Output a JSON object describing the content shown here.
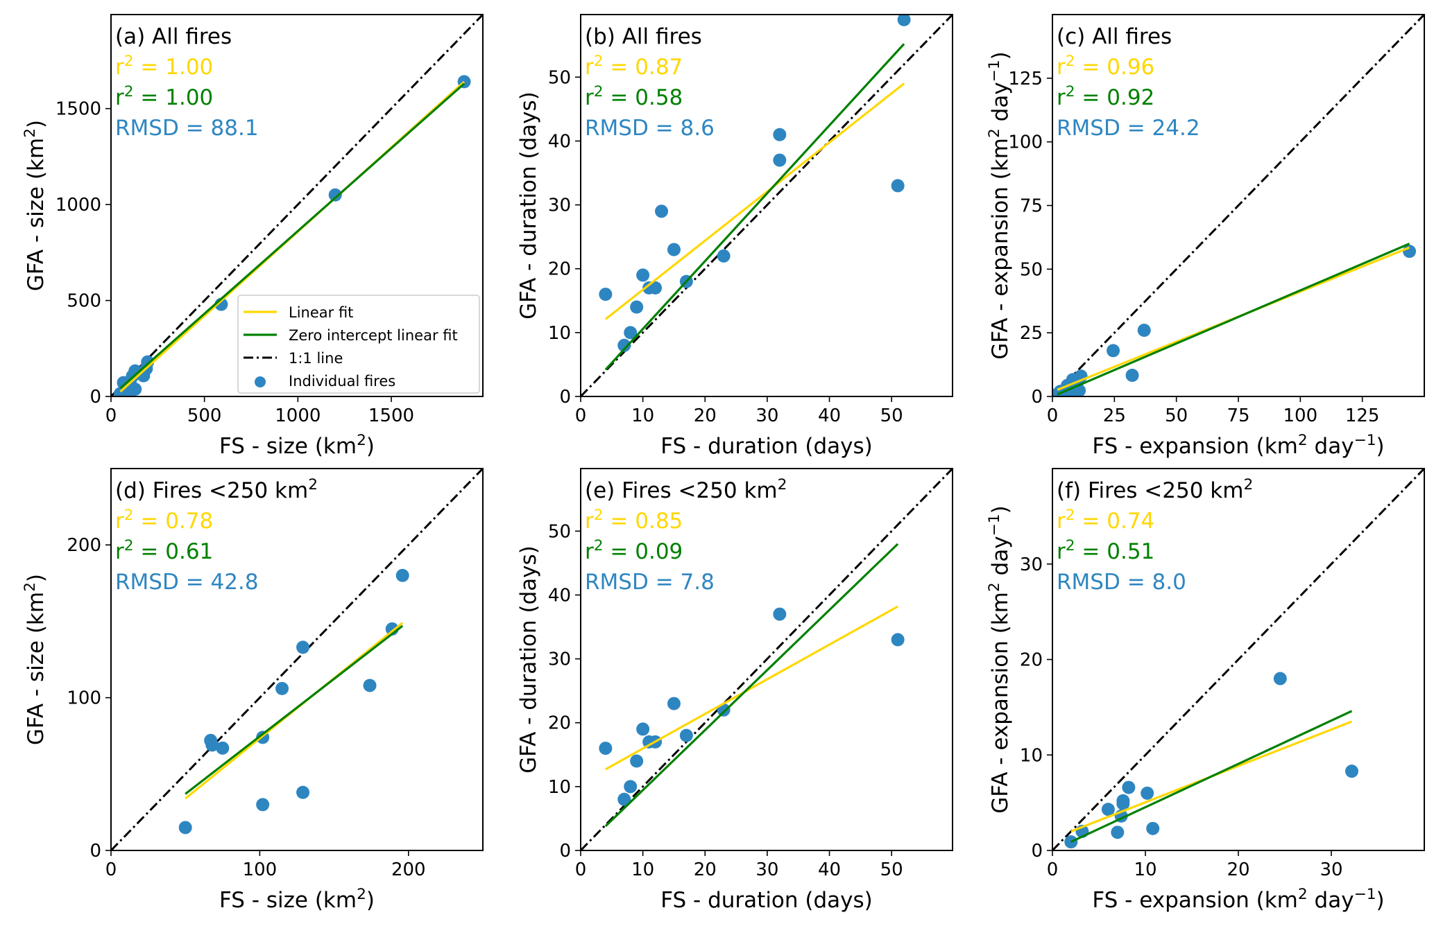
{
  "colors": {
    "linear_fit": "#FFD700",
    "zero_intercept_fit": "#008000",
    "one_to_one": "#000000",
    "points": "#2E86C1",
    "rmsd_text": "#2E86C1"
  },
  "legend": {
    "items": [
      {
        "label": "Linear fit",
        "kind": "line",
        "color": "#FFD700"
      },
      {
        "label": "Zero intercept linear fit",
        "kind": "line",
        "color": "#008000"
      },
      {
        "label": "1:1 line",
        "kind": "dashdot",
        "color": "#000000"
      },
      {
        "label": "Individual fires",
        "kind": "marker",
        "color": "#2E86C1"
      }
    ],
    "placement": "lower-right of panel (a)"
  },
  "chart_data": [
    {
      "type": "scatter",
      "panel": "a",
      "title": "(a) All fires",
      "title_sup": "",
      "xlabel": "FS - size (km",
      "xlabel_sup": "2",
      "xlabel_end": ")",
      "ylabel": "GFA - size (km",
      "ylabel_sup": "2",
      "ylabel_end": ")",
      "xlim": [
        0,
        1990
      ],
      "ylim": [
        0,
        1990
      ],
      "xticks": [
        0,
        500,
        1000,
        1500
      ],
      "yticks": [
        0,
        500,
        1000,
        1500
      ],
      "stats": {
        "r2_linear": "r2 = 1.00",
        "r2_zero": "r2 = 1.00",
        "rmsd": "RMSD = 88.1"
      },
      "stats_values": {
        "r2_linear": 1.0,
        "r2_zero": 1.0,
        "rmsd": 88.1
      },
      "points": [
        [
          50,
          15
        ],
        [
          67,
          72
        ],
        [
          68,
          69
        ],
        [
          75,
          67
        ],
        [
          102,
          30
        ],
        [
          102,
          74
        ],
        [
          115,
          106
        ],
        [
          129,
          133
        ],
        [
          129,
          38
        ],
        [
          174,
          108
        ],
        [
          189,
          145
        ],
        [
          196,
          180
        ],
        [
          590,
          480
        ],
        [
          1200,
          1050
        ],
        [
          1890,
          1640
        ]
      ],
      "linear_fit": [
        [
          50,
          25
        ],
        [
          1890,
          1640
        ]
      ],
      "zero_fit": [
        [
          50,
          43
        ],
        [
          1890,
          1630
        ]
      ],
      "legend": true
    },
    {
      "type": "scatter",
      "panel": "b",
      "title": "(b) All fires",
      "title_sup": "",
      "xlabel": "FS - duration (days)",
      "xlabel_sup": "",
      "xlabel_end": "",
      "ylabel": "GFA - duration (days)",
      "ylabel_sup": "",
      "ylabel_end": "",
      "xlim": [
        0,
        59.8
      ],
      "ylim": [
        0,
        59.8
      ],
      "xticks": [
        0,
        10,
        20,
        30,
        40,
        50
      ],
      "yticks": [
        0,
        10,
        20,
        30,
        40,
        50
      ],
      "stats": {
        "r2_linear": "r2 = 0.87",
        "r2_zero": "r2 = 0.58",
        "rmsd": "RMSD = 8.6"
      },
      "stats_values": {
        "r2_linear": 0.87,
        "r2_zero": 0.58,
        "rmsd": 8.6
      },
      "points": [
        [
          4,
          16
        ],
        [
          7,
          8
        ],
        [
          8,
          10
        ],
        [
          9,
          14
        ],
        [
          10,
          19
        ],
        [
          11,
          17
        ],
        [
          12,
          17
        ],
        [
          13,
          29
        ],
        [
          15,
          23
        ],
        [
          17,
          18
        ],
        [
          23,
          22
        ],
        [
          32,
          41
        ],
        [
          32,
          37
        ],
        [
          51,
          33
        ],
        [
          52,
          59
        ]
      ],
      "linear_fit": [
        [
          4,
          12.1
        ],
        [
          52,
          49
        ]
      ],
      "zero_fit": [
        [
          4,
          4.2
        ],
        [
          52,
          55.2
        ]
      ],
      "legend": false
    },
    {
      "type": "scatter",
      "panel": "c",
      "title": "(c) All fires",
      "title_sup": "",
      "xlabel": "FS - expansion (km",
      "xlabel_sup": "2",
      "xlabel_end": " day",
      "xlabel_sup2": "−1",
      "xlabel_end2": ")",
      "ylabel": "GFA - expansion (km",
      "ylabel_sup": "2",
      "ylabel_end": " day",
      "ylabel_sup2": "−1",
      "ylabel_end2": ")",
      "xlim": [
        0,
        150
      ],
      "ylim": [
        0,
        150
      ],
      "xticks": [
        0,
        25,
        50,
        75,
        100,
        125
      ],
      "yticks": [
        0,
        25,
        50,
        75,
        100,
        125
      ],
      "stats": {
        "r2_linear": "r2 = 0.96",
        "r2_zero": "r2 = 0.92",
        "rmsd": "RMSD = 24.2"
      },
      "stats_values": {
        "r2_linear": 0.96,
        "r2_zero": 0.92,
        "rmsd": 24.2
      },
      "points": [
        [
          2,
          0.9
        ],
        [
          3.2,
          2.0
        ],
        [
          6,
          4.3
        ],
        [
          7,
          1.9
        ],
        [
          7.4,
          3.6
        ],
        [
          7.6,
          4.9
        ],
        [
          8.2,
          6.6
        ],
        [
          10.2,
          6.0
        ],
        [
          10.8,
          2.3
        ],
        [
          11.5,
          8
        ],
        [
          24.5,
          18
        ],
        [
          32.2,
          8.3
        ],
        [
          37,
          26
        ],
        [
          144,
          57
        ]
      ],
      "linear_fit": [
        [
          2,
          2.6
        ],
        [
          144,
          58.5
        ]
      ],
      "zero_fit": [
        [
          2,
          0.8
        ],
        [
          144,
          60
        ]
      ],
      "legend": false
    },
    {
      "type": "scatter",
      "panel": "d",
      "title": "(d) Fires <250 km",
      "title_sup": "2",
      "xlabel": "FS - size (km",
      "xlabel_sup": "2",
      "xlabel_end": ")",
      "ylabel": "GFA - size (km",
      "ylabel_sup": "2",
      "ylabel_end": ")",
      "xlim": [
        0,
        250
      ],
      "ylim": [
        0,
        250
      ],
      "xticks": [
        0,
        100,
        200
      ],
      "yticks": [
        0,
        100,
        200
      ],
      "stats": {
        "r2_linear": "r2 = 0.78",
        "r2_zero": "r2 = 0.61",
        "rmsd": "RMSD = 42.8"
      },
      "stats_values": {
        "r2_linear": 0.78,
        "r2_zero": 0.61,
        "rmsd": 42.8
      },
      "points": [
        [
          50,
          15
        ],
        [
          67,
          72
        ],
        [
          68,
          69
        ],
        [
          75,
          67
        ],
        [
          102,
          30
        ],
        [
          102,
          74
        ],
        [
          115,
          106
        ],
        [
          129,
          133
        ],
        [
          129,
          38
        ],
        [
          174,
          108
        ],
        [
          189,
          145
        ],
        [
          196,
          180
        ]
      ],
      "linear_fit": [
        [
          50,
          34
        ],
        [
          196,
          149
        ]
      ],
      "zero_fit": [
        [
          50,
          37
        ],
        [
          196,
          147
        ]
      ],
      "legend": false
    },
    {
      "type": "scatter",
      "panel": "e",
      "title": "(e) Fires <250 km",
      "title_sup": "2",
      "xlabel": "FS - duration (days)",
      "xlabel_sup": "",
      "xlabel_end": "",
      "ylabel": "GFA - duration (days)",
      "ylabel_sup": "",
      "ylabel_end": "",
      "xlim": [
        0,
        59.8
      ],
      "ylim": [
        0,
        59.8
      ],
      "xticks": [
        0,
        10,
        20,
        30,
        40,
        50
      ],
      "yticks": [
        0,
        10,
        20,
        30,
        40,
        50
      ],
      "stats": {
        "r2_linear": "r2 = 0.85",
        "r2_zero": "r2 = 0.09",
        "rmsd": "RMSD = 7.8"
      },
      "stats_values": {
        "r2_linear": 0.85,
        "r2_zero": 0.09,
        "rmsd": 7.8
      },
      "points": [
        [
          4,
          16
        ],
        [
          7,
          8
        ],
        [
          8,
          10
        ],
        [
          9,
          14
        ],
        [
          10,
          19
        ],
        [
          11,
          17
        ],
        [
          12,
          17
        ],
        [
          15,
          23
        ],
        [
          17,
          18
        ],
        [
          23,
          22
        ],
        [
          32,
          37
        ],
        [
          51,
          33
        ]
      ],
      "linear_fit": [
        [
          4,
          12.7
        ],
        [
          51,
          38.2
        ]
      ],
      "zero_fit": [
        [
          4,
          3.8
        ],
        [
          51,
          48
        ]
      ],
      "legend": false
    },
    {
      "type": "scatter",
      "panel": "f",
      "title": "(f) Fires <250 km",
      "title_sup": "2",
      "xlabel": "FS - expansion (km",
      "xlabel_sup": "2",
      "xlabel_end": " day",
      "xlabel_sup2": "−1",
      "xlabel_end2": ")",
      "ylabel": "GFA - expansion (km",
      "ylabel_sup": "2",
      "ylabel_end": " day",
      "ylabel_sup2": "−1",
      "ylabel_end2": ")",
      "xlim": [
        0,
        40
      ],
      "ylim": [
        0,
        40
      ],
      "xticks": [
        0,
        10,
        20,
        30
      ],
      "yticks": [
        0,
        10,
        20,
        30
      ],
      "stats": {
        "r2_linear": "r2 = 0.74",
        "r2_zero": "r2 = 0.51",
        "rmsd": "RMSD = 8.0"
      },
      "stats_values": {
        "r2_linear": 0.74,
        "r2_zero": 0.51,
        "rmsd": 8.0
      },
      "points": [
        [
          2,
          0.9
        ],
        [
          3.2,
          2.0
        ],
        [
          6,
          4.3
        ],
        [
          7,
          1.9
        ],
        [
          7.4,
          3.6
        ],
        [
          7.6,
          4.9
        ],
        [
          7.6,
          5.2
        ],
        [
          8.2,
          6.6
        ],
        [
          10.2,
          6.0
        ],
        [
          10.8,
          2.3
        ],
        [
          24.5,
          18
        ],
        [
          32.2,
          8.3
        ]
      ],
      "linear_fit": [
        [
          2,
          2.0
        ],
        [
          32.2,
          13.5
        ]
      ],
      "zero_fit": [
        [
          2,
          0.9
        ],
        [
          32.2,
          14.6
        ]
      ],
      "legend": false
    }
  ]
}
